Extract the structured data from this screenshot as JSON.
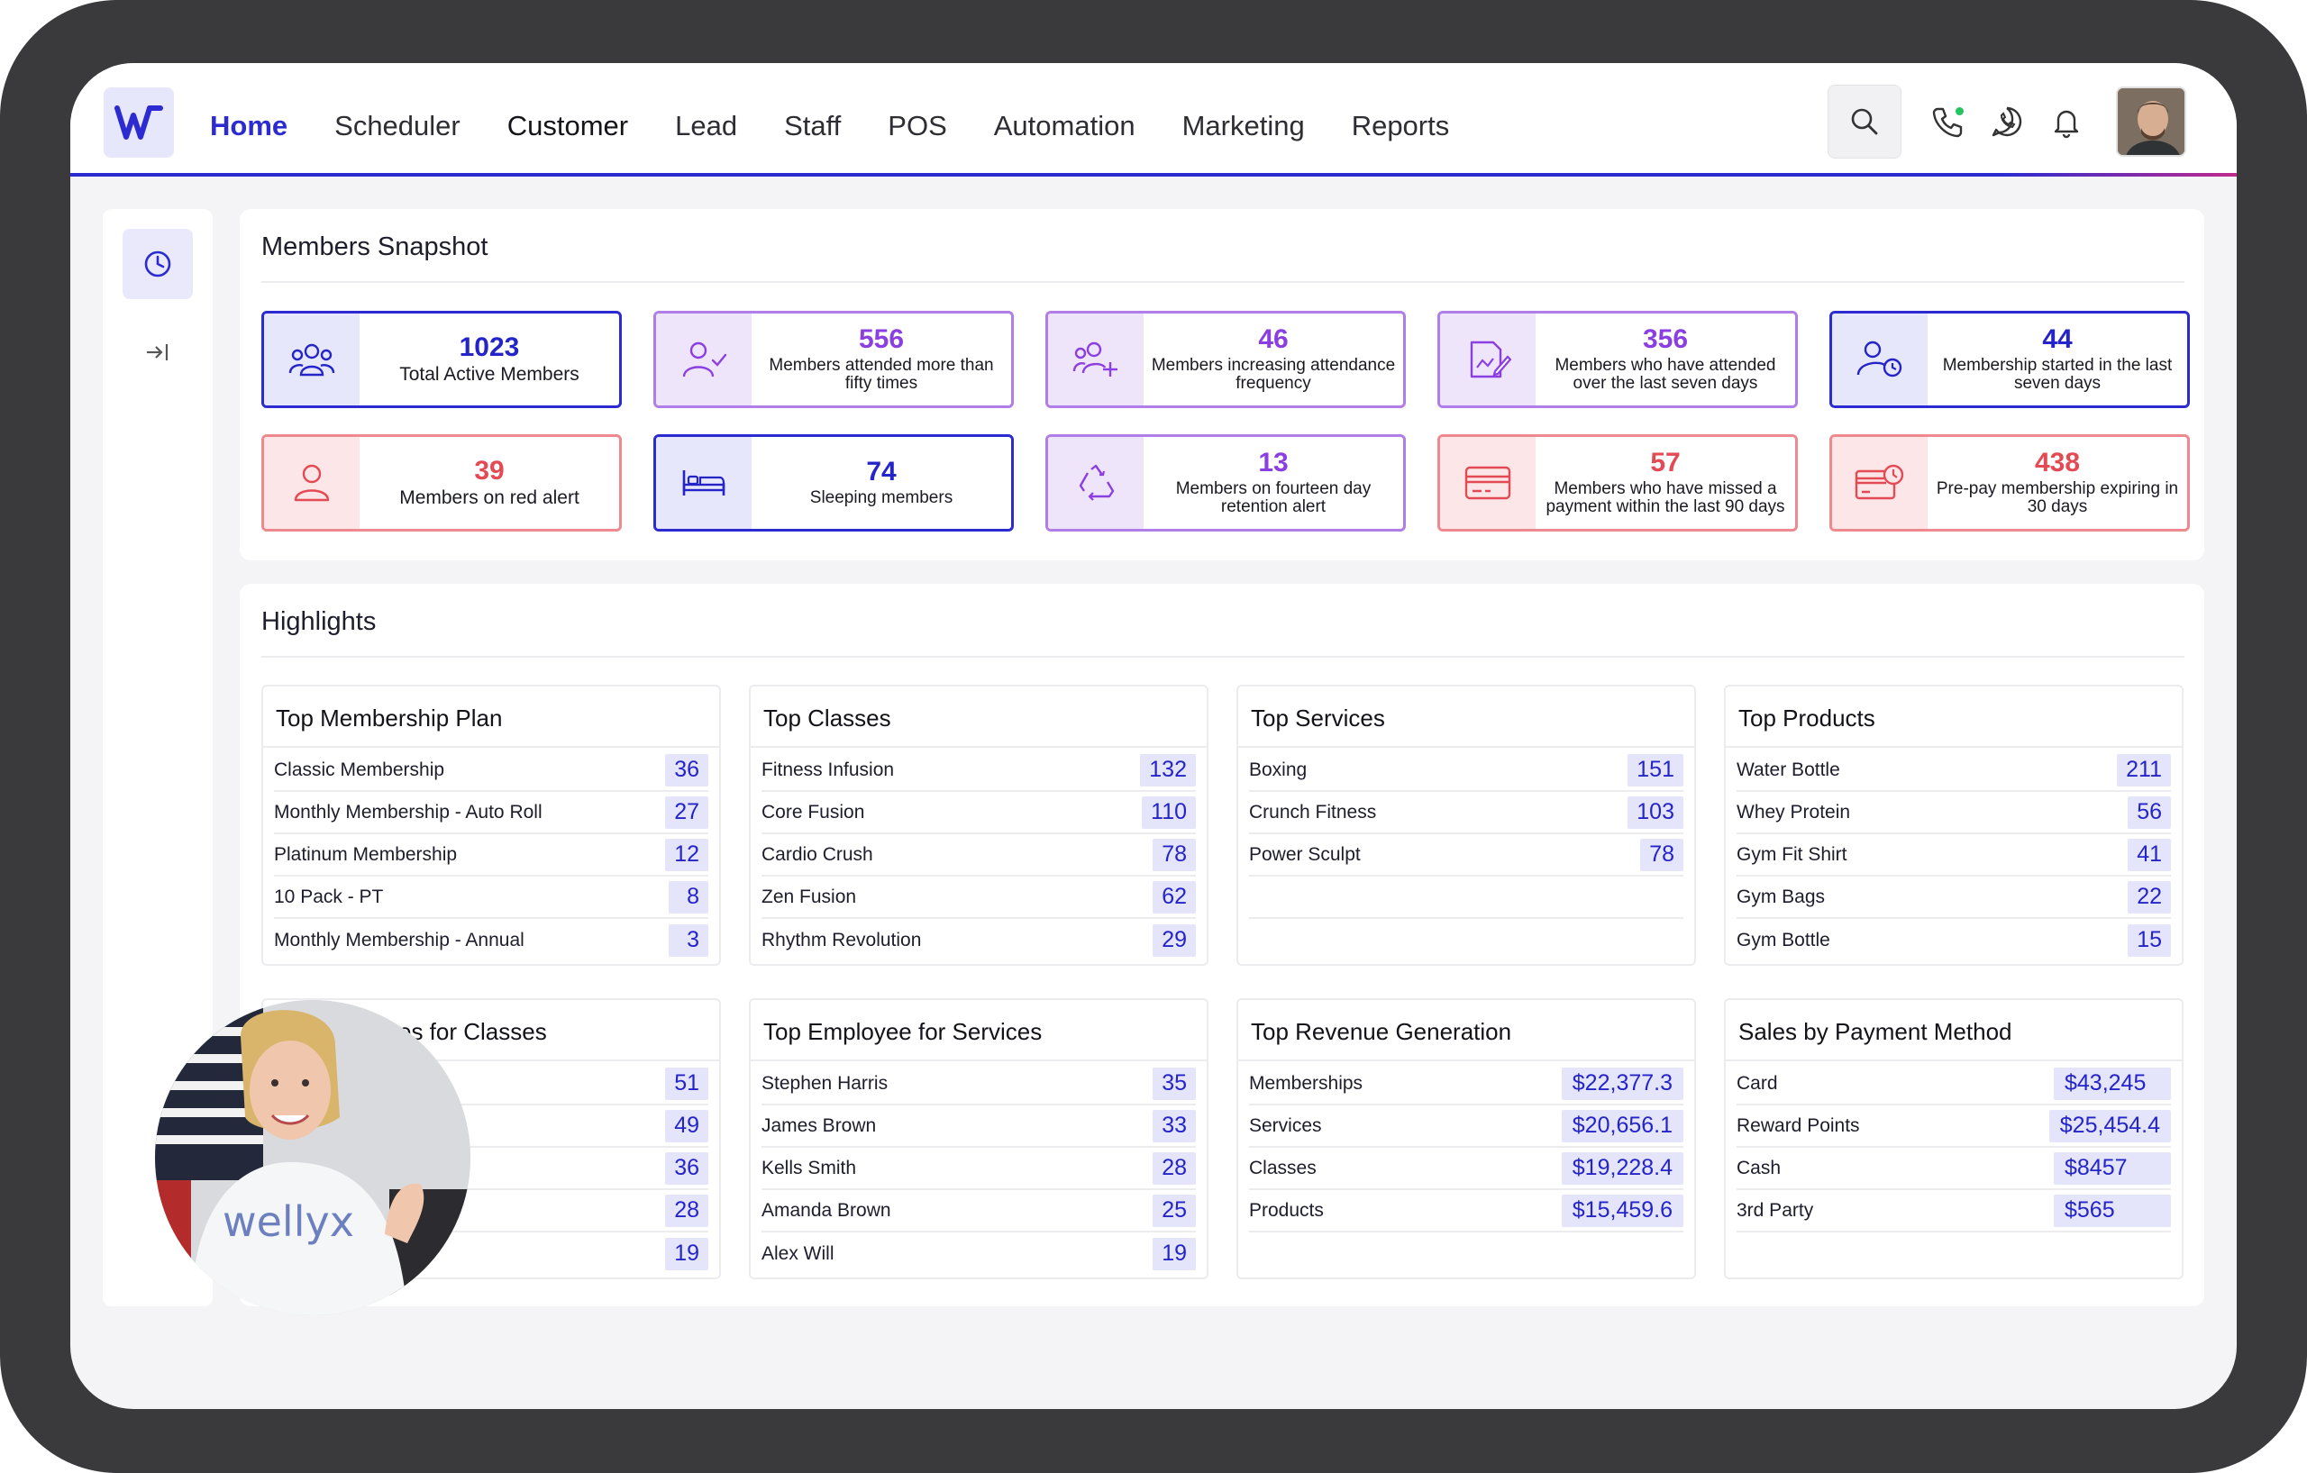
{
  "nav": {
    "items": [
      "Home",
      "Scheduler",
      "Customer",
      "Lead",
      "Staff",
      "POS",
      "Automation",
      "Marketing",
      "Reports"
    ],
    "active": "Home",
    "icons": [
      "search-icon",
      "phone-icon",
      "whatsapp-icon",
      "bell-icon"
    ],
    "accent": "#2b2bd1"
  },
  "snapshot": {
    "title": "Members Snapshot",
    "cards": [
      {
        "value": "1023",
        "label": "Total Active Members",
        "icon": "users-group-icon",
        "tone": "blue"
      },
      {
        "value": "556",
        "label": "Members attended more than fifty times",
        "icon": "user-check-icon",
        "tone": "purple"
      },
      {
        "value": "46",
        "label": "Members increasing attendance frequency",
        "icon": "users-plus-icon",
        "tone": "purple"
      },
      {
        "value": "356",
        "label": "Members who have attended over the last seven days",
        "icon": "document-edit-icon",
        "tone": "purple"
      },
      {
        "value": "44",
        "label": "Membership started in the last seven days",
        "icon": "user-clock-icon",
        "tone": "blue"
      },
      {
        "value": "39",
        "label": "Members on red alert",
        "icon": "user-icon",
        "tone": "red"
      },
      {
        "value": "74",
        "label": "Sleeping members",
        "icon": "bed-icon",
        "tone": "blue"
      },
      {
        "value": "13",
        "label": "Members on fourteen day retention alert",
        "icon": "recycle-icon",
        "tone": "purple"
      },
      {
        "value": "57",
        "label": "Members who have missed a payment within the last 90 days",
        "icon": "credit-card-icon",
        "tone": "red"
      },
      {
        "value": "438",
        "label": "Pre-pay membership expiring in 30 days",
        "icon": "card-clock-icon",
        "tone": "red"
      }
    ]
  },
  "highlights": {
    "title": "Highlights",
    "tables": [
      {
        "title": "Top Membership Plan",
        "rows": [
          {
            "name": "Classic Membership",
            "value": "36"
          },
          {
            "name": "Monthly Membership - Auto Roll",
            "value": "27"
          },
          {
            "name": "Platinum Membership",
            "value": "12"
          },
          {
            "name": "10 Pack - PT",
            "value": "8"
          },
          {
            "name": "Monthly Membership - Annual",
            "value": "3"
          }
        ]
      },
      {
        "title": "Top Classes",
        "rows": [
          {
            "name": "Fitness Infusion",
            "value": "132"
          },
          {
            "name": "Core Fusion",
            "value": "110"
          },
          {
            "name": "Cardio Crush",
            "value": "78"
          },
          {
            "name": "Zen Fusion",
            "value": "62"
          },
          {
            "name": "Rhythm Revolution",
            "value": "29"
          }
        ]
      },
      {
        "title": "Top Services",
        "rows": [
          {
            "name": "Boxing",
            "value": "151"
          },
          {
            "name": "Crunch Fitness",
            "value": "103"
          },
          {
            "name": "Power Sculpt",
            "value": "78"
          }
        ]
      },
      {
        "title": "Top Products",
        "rows": [
          {
            "name": "Water Bottle",
            "value": "211"
          },
          {
            "name": "Whey Protein",
            "value": "56"
          },
          {
            "name": "Gym Fit Shirt",
            "value": "41"
          },
          {
            "name": "Gym Bags",
            "value": "22"
          },
          {
            "name": "Gym Bottle",
            "value": "15"
          }
        ]
      },
      {
        "title": "es for Classes",
        "rows": [
          {
            "name": "",
            "value": "51"
          },
          {
            "name": "",
            "value": "49"
          },
          {
            "name": "",
            "value": "36"
          },
          {
            "name": "",
            "value": "28"
          },
          {
            "name": "",
            "value": "19"
          }
        ]
      },
      {
        "title": "Top Employee for Services",
        "rows": [
          {
            "name": "Stephen Harris",
            "value": "35"
          },
          {
            "name": "James Brown",
            "value": "33"
          },
          {
            "name": "Kells Smith",
            "value": "28"
          },
          {
            "name": "Amanda Brown",
            "value": "25"
          },
          {
            "name": "Alex Will",
            "value": "19"
          }
        ]
      },
      {
        "title": "Top Revenue Generation",
        "rows": [
          {
            "name": "Memberships",
            "value": "$22,377.3"
          },
          {
            "name": "Services",
            "value": "$20,656.1"
          },
          {
            "name": "Classes",
            "value": "$19,228.4"
          },
          {
            "name": "Products",
            "value": "$15,459.6"
          }
        ]
      },
      {
        "title": "Sales by Payment Method",
        "rows": [
          {
            "name": "Card",
            "value": "$43,245"
          },
          {
            "name": "Reward Points",
            "value": "$25,454.4"
          },
          {
            "name": "Cash",
            "value": "$8457"
          },
          {
            "name": "3rd Party",
            "value": "$565"
          }
        ]
      }
    ]
  },
  "webcam": {
    "shirt_text": "wellyx"
  }
}
